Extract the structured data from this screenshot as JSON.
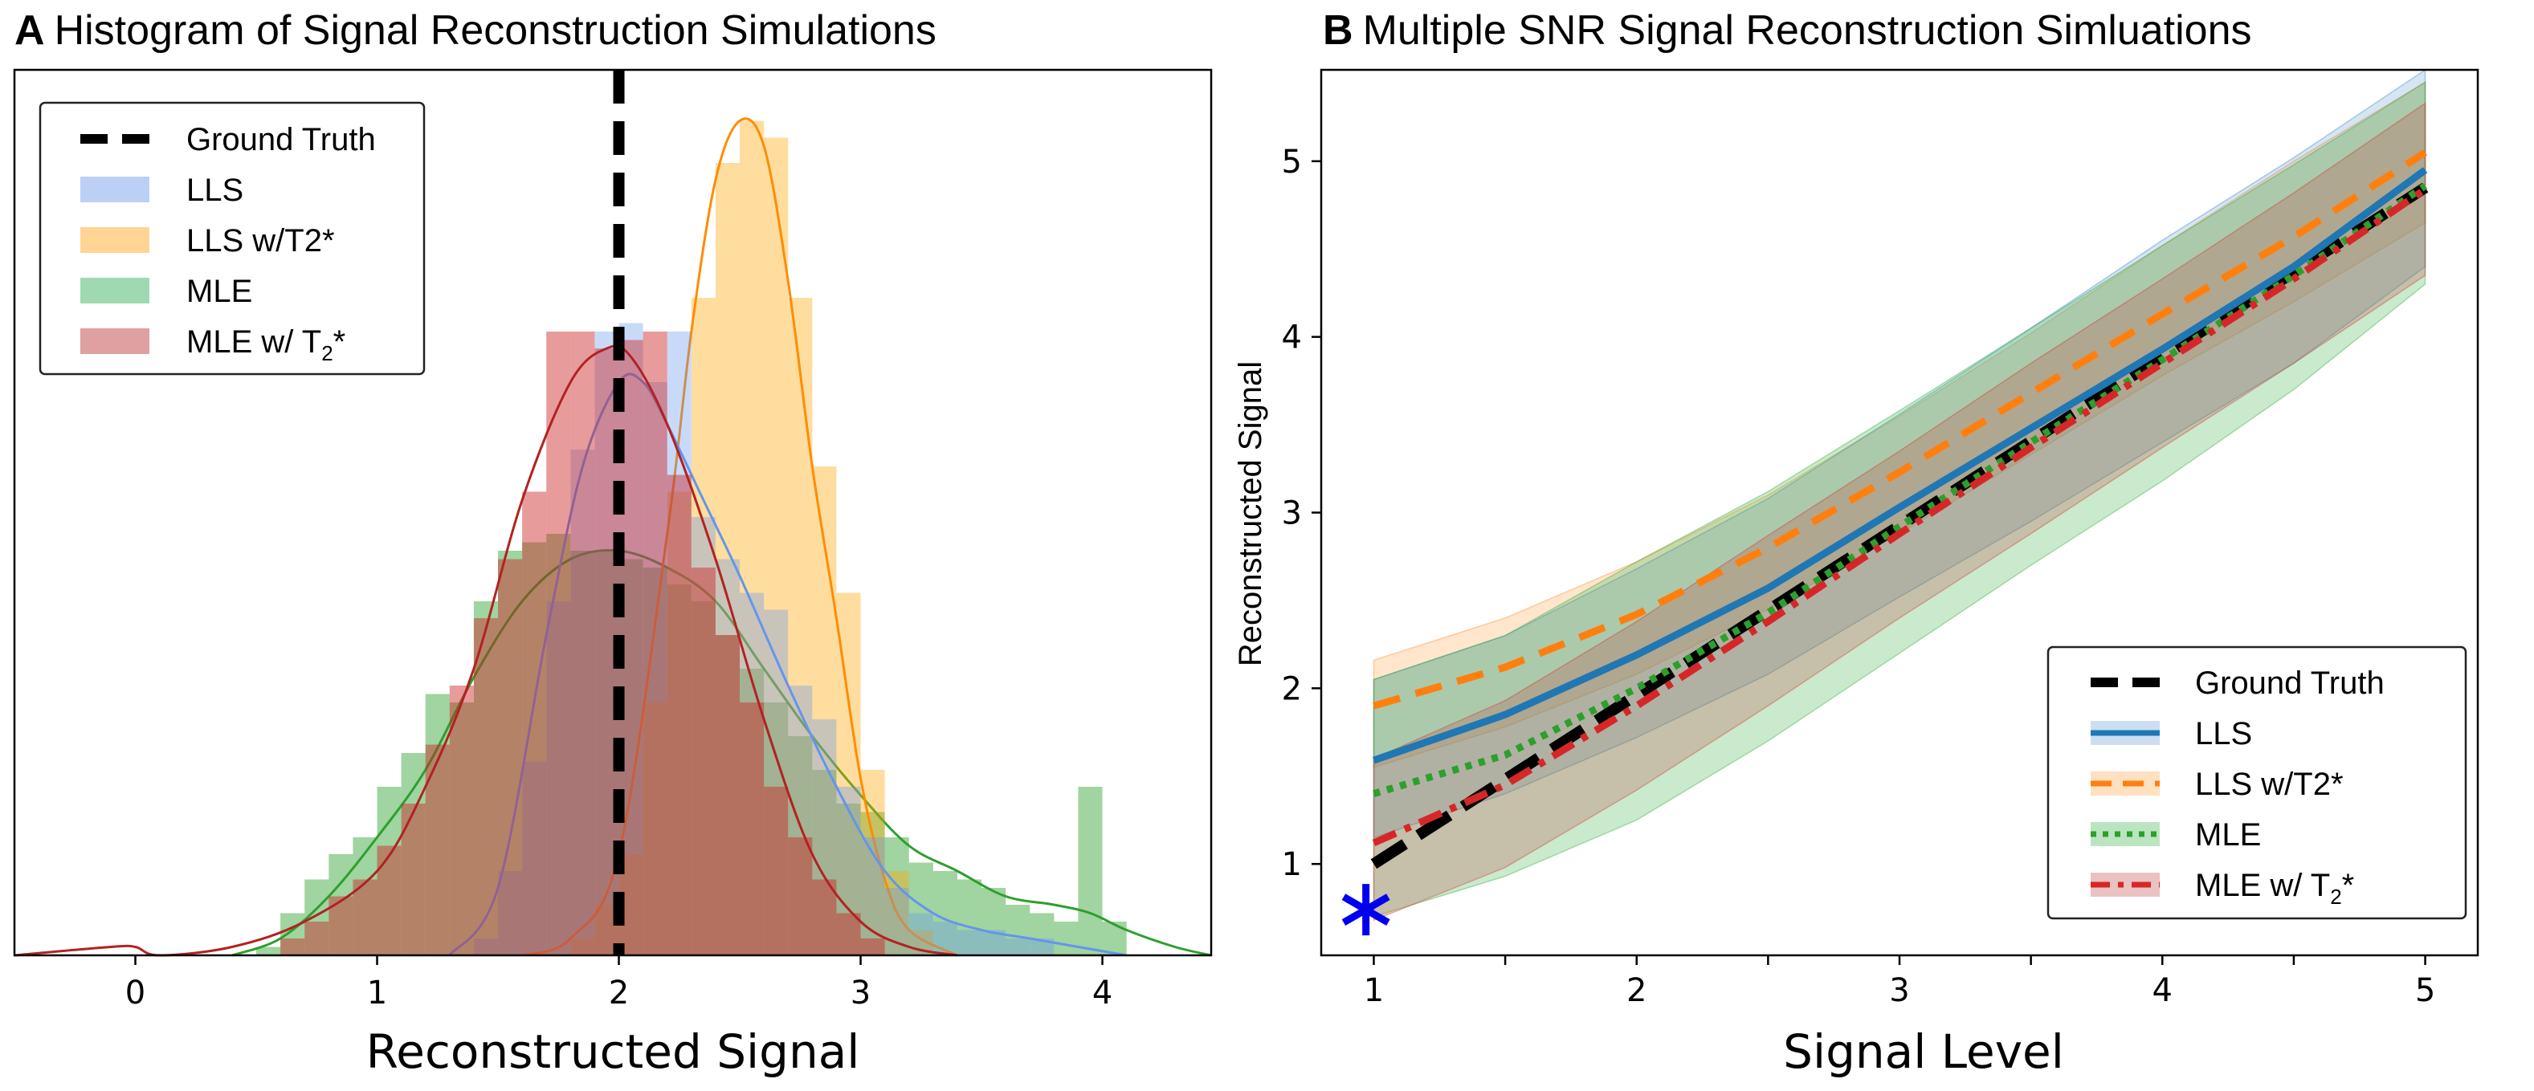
{
  "chart_data": [
    {
      "type": "histogram",
      "panel_letter": "A",
      "title": "Histogram of Signal Reconstruction Simulations",
      "xlabel": "Reconstructed Signal",
      "ylabel": "",
      "xlim": [
        -0.5,
        4.45
      ],
      "xticks": [
        "0",
        "1",
        "2",
        "3",
        "4"
      ],
      "ground_truth": 2,
      "legend_position": "upper-left",
      "legend": [
        {
          "key": "gt",
          "label": "Ground Truth",
          "style": "dashed-line",
          "color": "#000000"
        },
        {
          "key": "lls",
          "label": "LLS",
          "style": "patch",
          "color": "#8fb0ee"
        },
        {
          "key": "llst2",
          "label": "LLS w/T2*",
          "style": "patch",
          "color": "#ffb74d"
        },
        {
          "key": "mle",
          "label": "MLE",
          "style": "patch",
          "color": "#5fbf7f"
        },
        {
          "key": "mlet2",
          "label": "MLE w/ T",
          "label_sub": "2",
          "label_suffix": "*",
          "style": "patch",
          "color": "#c86060"
        }
      ],
      "series": [
        {
          "name": "MLE",
          "fill": "#2ca02c",
          "line": "#2ca02c",
          "opacity": 0.45,
          "bins": [
            [
              0.5,
              0.01
            ],
            [
              0.6,
              0.05
            ],
            [
              0.7,
              0.09
            ],
            [
              0.8,
              0.12
            ],
            [
              0.9,
              0.14
            ],
            [
              1.0,
              0.2
            ],
            [
              1.1,
              0.24
            ],
            [
              1.2,
              0.31
            ],
            [
              1.3,
              0.3
            ],
            [
              1.4,
              0.42
            ],
            [
              1.5,
              0.48
            ],
            [
              1.6,
              0.49
            ],
            [
              1.7,
              0.5
            ],
            [
              1.8,
              0.48
            ],
            [
              1.9,
              0.48
            ],
            [
              2.0,
              0.47
            ],
            [
              2.1,
              0.46
            ],
            [
              2.2,
              0.44
            ],
            [
              2.3,
              0.42
            ],
            [
              2.4,
              0.38
            ],
            [
              2.5,
              0.34
            ],
            [
              2.6,
              0.3
            ],
            [
              2.7,
              0.26
            ],
            [
              2.8,
              0.22
            ],
            [
              2.9,
              0.18
            ],
            [
              3.0,
              0.17
            ],
            [
              3.1,
              0.14
            ],
            [
              3.2,
              0.11
            ],
            [
              3.3,
              0.1
            ],
            [
              3.4,
              0.09
            ],
            [
              3.5,
              0.08
            ],
            [
              3.6,
              0.06
            ],
            [
              3.7,
              0.05
            ],
            [
              3.8,
              0.04
            ],
            [
              3.9,
              0.2
            ],
            [
              4.0,
              0.04
            ]
          ],
          "kde": [
            [
              0.4,
              0.0
            ],
            [
              0.6,
              0.02
            ],
            [
              0.8,
              0.07
            ],
            [
              1.0,
              0.14
            ],
            [
              1.2,
              0.22
            ],
            [
              1.4,
              0.33
            ],
            [
              1.6,
              0.42
            ],
            [
              1.8,
              0.47
            ],
            [
              2.0,
              0.48
            ],
            [
              2.2,
              0.46
            ],
            [
              2.4,
              0.42
            ],
            [
              2.6,
              0.34
            ],
            [
              2.8,
              0.26
            ],
            [
              3.0,
              0.19
            ],
            [
              3.2,
              0.13
            ],
            [
              3.4,
              0.1
            ],
            [
              3.6,
              0.07
            ],
            [
              3.8,
              0.06
            ],
            [
              3.95,
              0.05
            ],
            [
              4.1,
              0.03
            ],
            [
              4.3,
              0.01
            ],
            [
              4.45,
              0.0
            ]
          ]
        },
        {
          "name": "LLS w/T2*",
          "fill": "#ffa500",
          "line": "#ff8c00",
          "opacity": 0.38,
          "bins": [
            [
              1.8,
              0.02
            ],
            [
              1.9,
              0.06
            ],
            [
              2.0,
              0.12
            ],
            [
              2.1,
              0.3
            ],
            [
              2.2,
              0.55
            ],
            [
              2.3,
              0.78
            ],
            [
              2.4,
              0.94
            ],
            [
              2.5,
              0.99
            ],
            [
              2.6,
              0.97
            ],
            [
              2.7,
              0.78
            ],
            [
              2.8,
              0.58
            ],
            [
              2.9,
              0.43
            ],
            [
              3.0,
              0.22
            ],
            [
              3.1,
              0.1
            ],
            [
              3.2,
              0.03
            ]
          ],
          "kde": [
            [
              1.6,
              0.0
            ],
            [
              1.8,
              0.02
            ],
            [
              2.0,
              0.12
            ],
            [
              2.2,
              0.5
            ],
            [
              2.3,
              0.74
            ],
            [
              2.4,
              0.92
            ],
            [
              2.5,
              0.99
            ],
            [
              2.6,
              0.96
            ],
            [
              2.7,
              0.8
            ],
            [
              2.8,
              0.58
            ],
            [
              2.9,
              0.4
            ],
            [
              3.0,
              0.21
            ],
            [
              3.1,
              0.09
            ],
            [
              3.2,
              0.03
            ],
            [
              3.4,
              0.0
            ]
          ]
        },
        {
          "name": "LLS",
          "fill": "#6495ed",
          "line": "#6495ed",
          "opacity": 0.35,
          "bins": [
            [
              1.4,
              0.02
            ],
            [
              1.5,
              0.1
            ],
            [
              1.6,
              0.23
            ],
            [
              1.7,
              0.42
            ],
            [
              1.8,
              0.6
            ],
            [
              1.9,
              0.74
            ],
            [
              2.0,
              0.75
            ],
            [
              2.1,
              0.68
            ],
            [
              2.2,
              0.74
            ],
            [
              2.3,
              0.52
            ],
            [
              2.4,
              0.47
            ],
            [
              2.5,
              0.43
            ],
            [
              2.6,
              0.41
            ],
            [
              2.7,
              0.32
            ],
            [
              2.8,
              0.28
            ],
            [
              2.9,
              0.2
            ],
            [
              3.0,
              0.14
            ],
            [
              3.1,
              0.08
            ],
            [
              3.2,
              0.05
            ],
            [
              3.3,
              0.04
            ],
            [
              3.4,
              0.03
            ],
            [
              3.5,
              0.03
            ],
            [
              3.6,
              0.02
            ],
            [
              3.7,
              0.02
            ]
          ],
          "kde": [
            [
              1.3,
              0.0
            ],
            [
              1.5,
              0.08
            ],
            [
              1.7,
              0.38
            ],
            [
              1.85,
              0.58
            ],
            [
              2.0,
              0.68
            ],
            [
              2.1,
              0.68
            ],
            [
              2.2,
              0.63
            ],
            [
              2.35,
              0.54
            ],
            [
              2.5,
              0.45
            ],
            [
              2.7,
              0.32
            ],
            [
              2.9,
              0.2
            ],
            [
              3.1,
              0.1
            ],
            [
              3.3,
              0.05
            ],
            [
              3.5,
              0.03
            ],
            [
              3.7,
              0.02
            ],
            [
              3.9,
              0.01
            ],
            [
              4.1,
              0.0
            ]
          ]
        },
        {
          "name": "MLE w/ T2*",
          "fill": "#cc2222",
          "line": "#b22222",
          "opacity": 0.45,
          "bins": [
            [
              0.6,
              0.02
            ],
            [
              0.7,
              0.04
            ],
            [
              0.8,
              0.07
            ],
            [
              0.9,
              0.09
            ],
            [
              1.0,
              0.13
            ],
            [
              1.1,
              0.18
            ],
            [
              1.2,
              0.25
            ],
            [
              1.3,
              0.32
            ],
            [
              1.4,
              0.4
            ],
            [
              1.5,
              0.47
            ],
            [
              1.6,
              0.55
            ],
            [
              1.7,
              0.74
            ],
            [
              1.8,
              0.74
            ],
            [
              1.9,
              0.72
            ],
            [
              2.0,
              0.73
            ],
            [
              2.1,
              0.74
            ],
            [
              2.2,
              0.57
            ],
            [
              2.3,
              0.46
            ],
            [
              2.4,
              0.38
            ],
            [
              2.5,
              0.3
            ],
            [
              2.6,
              0.2
            ],
            [
              2.7,
              0.14
            ],
            [
              2.8,
              0.09
            ],
            [
              2.9,
              0.05
            ],
            [
              3.0,
              0.02
            ]
          ],
          "kde": [
            [
              -0.5,
              0.0
            ],
            [
              -0.1,
              0.01
            ],
            [
              0.0,
              0.01
            ],
            [
              0.1,
              0.0
            ],
            [
              0.4,
              0.01
            ],
            [
              0.7,
              0.04
            ],
            [
              1.0,
              0.1
            ],
            [
              1.2,
              0.2
            ],
            [
              1.4,
              0.34
            ],
            [
              1.6,
              0.54
            ],
            [
              1.8,
              0.68
            ],
            [
              1.95,
              0.72
            ],
            [
              2.05,
              0.71
            ],
            [
              2.2,
              0.63
            ],
            [
              2.4,
              0.47
            ],
            [
              2.6,
              0.28
            ],
            [
              2.8,
              0.12
            ],
            [
              3.0,
              0.04
            ],
            [
              3.2,
              0.01
            ],
            [
              3.4,
              0.0
            ]
          ]
        }
      ]
    },
    {
      "type": "line",
      "panel_letter": "B",
      "title": "Multiple SNR Signal Reconstruction Simluations",
      "xlabel": "Signal Level",
      "ylabel": "Reconstructed Signal",
      "xlim": [
        0.8,
        5.2
      ],
      "ylim": [
        0.48,
        5.52
      ],
      "xticks": [
        "1",
        "2",
        "3",
        "4",
        "5"
      ],
      "yticks": [
        "1",
        "2",
        "3",
        "4",
        "5"
      ],
      "legend_position": "lower-right",
      "marker": {
        "x": 0.97,
        "y": 0.74,
        "symbol": "*",
        "color": "#0000ee"
      },
      "legend": [
        {
          "key": "gt",
          "label": "Ground Truth"
        },
        {
          "key": "lls",
          "label": "LLS"
        },
        {
          "key": "llst2",
          "label": "LLS w/T2*"
        },
        {
          "key": "mle",
          "label": "MLE"
        },
        {
          "key": "mlet2",
          "label": "MLE w/ T",
          "label_sub": "2",
          "label_suffix": "*"
        }
      ],
      "series": [
        {
          "name": "LLS w/T2*",
          "color": "#ff7f0e",
          "dash": "dashed",
          "x": [
            1.0,
            1.5,
            2.0,
            2.5,
            3.0,
            3.5,
            4.0,
            4.5,
            5.0
          ],
          "y": [
            1.9,
            2.12,
            2.42,
            2.8,
            3.23,
            3.68,
            4.13,
            4.57,
            5.05
          ],
          "upper": [
            2.16,
            2.4,
            2.72,
            3.1,
            3.55,
            4.02,
            4.52,
            5.0,
            5.45
          ],
          "lower": [
            1.55,
            1.78,
            2.08,
            2.45,
            2.88,
            3.33,
            3.78,
            4.2,
            4.65
          ]
        },
        {
          "name": "LLS",
          "color": "#1f77b4",
          "dash": "solid",
          "x": [
            1.0,
            1.5,
            2.0,
            2.5,
            3.0,
            3.5,
            4.0,
            4.5,
            5.0
          ],
          "y": [
            1.59,
            1.85,
            2.19,
            2.57,
            3.03,
            3.48,
            3.93,
            4.4,
            4.95
          ],
          "upper": [
            2.05,
            2.3,
            2.68,
            3.08,
            3.56,
            4.05,
            4.55,
            5.02,
            5.52
          ],
          "lower": [
            1.15,
            1.4,
            1.72,
            2.08,
            2.52,
            2.95,
            3.4,
            3.85,
            4.4
          ]
        },
        {
          "name": "MLE",
          "color": "#2ca02c",
          "dash": "dotted",
          "x": [
            1.0,
            1.5,
            2.0,
            2.5,
            3.0,
            3.5,
            4.0,
            4.5,
            5.0
          ],
          "y": [
            1.4,
            1.62,
            2.0,
            2.43,
            2.92,
            3.4,
            3.87,
            4.35,
            4.86
          ],
          "upper": [
            2.05,
            2.3,
            2.72,
            3.12,
            3.58,
            4.05,
            4.52,
            4.98,
            5.45
          ],
          "lower": [
            0.7,
            0.93,
            1.25,
            1.7,
            2.2,
            2.7,
            3.18,
            3.7,
            4.3
          ]
        },
        {
          "name": "MLE w/ T2*",
          "color": "#d62728",
          "dash": "dashdot",
          "x": [
            1.0,
            1.5,
            2.0,
            2.5,
            3.0,
            3.5,
            4.0,
            4.5,
            5.0
          ],
          "y": [
            1.12,
            1.45,
            1.9,
            2.38,
            2.88,
            3.37,
            3.85,
            4.33,
            4.84
          ],
          "upper": [
            1.6,
            1.93,
            2.38,
            2.87,
            3.35,
            3.85,
            4.33,
            4.82,
            5.33
          ],
          "lower": [
            0.68,
            0.98,
            1.42,
            1.9,
            2.4,
            2.88,
            3.37,
            3.85,
            4.35
          ]
        },
        {
          "name": "Ground Truth",
          "color": "#000000",
          "dash": "gt",
          "x": [
            1.0,
            5.0
          ],
          "y": [
            1.0,
            4.85
          ]
        }
      ]
    }
  ]
}
